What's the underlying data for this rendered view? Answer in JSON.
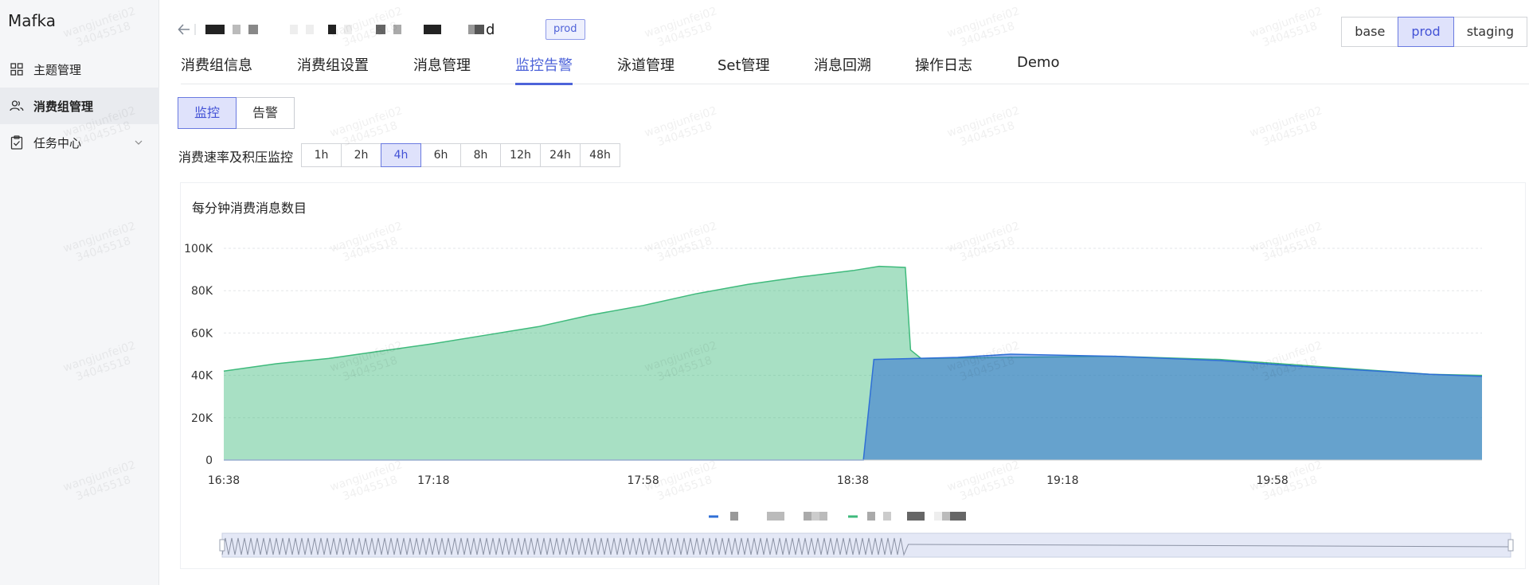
{
  "app": {
    "brand": "Mafka"
  },
  "sidebar": {
    "items": [
      {
        "label": "主题管理",
        "icon": "grid-icon"
      },
      {
        "label": "消费组管理",
        "icon": "users-icon"
      },
      {
        "label": "任务中心",
        "icon": "clipboard-icon"
      }
    ]
  },
  "header": {
    "title_suffix": "d",
    "env_tag": "prod",
    "env_options": [
      "base",
      "prod",
      "staging"
    ],
    "env_selected": "prod"
  },
  "tabs": [
    "消费组信息",
    "消费组设置",
    "消息管理",
    "监控告警",
    "泳道管理",
    "Set管理",
    "消息回溯",
    "操作日志",
    "Demo"
  ],
  "active_tab": "监控告警",
  "segment": {
    "options": [
      "监控",
      "告警"
    ],
    "selected": "监控"
  },
  "range": {
    "label": "消费速率及积压监控",
    "options": [
      "1h",
      "2h",
      "4h",
      "6h",
      "8h",
      "12h",
      "24h",
      "48h"
    ],
    "selected": "4h"
  },
  "watermark": {
    "line1": "wangjunfei02",
    "line2": "34045518"
  },
  "colors": {
    "accent": "#4d63d9",
    "series_green": "#3fba7c",
    "series_blue": "#2f6fd6"
  },
  "chart_data": {
    "type": "area",
    "title": "每分钟消费消息数目",
    "x_ticks": [
      "16:38",
      "17:18",
      "17:58",
      "18:38",
      "19:18",
      "19:58"
    ],
    "x_range_minutes": [
      0,
      240
    ],
    "y_ticks": [
      "100K",
      "80K",
      "60K",
      "40K",
      "20K",
      "0"
    ],
    "ylim": [
      0,
      100000
    ],
    "series": [
      {
        "color": "#3fba7c",
        "points": [
          [
            0,
            42000
          ],
          [
            10,
            45500
          ],
          [
            20,
            48000
          ],
          [
            30,
            51500
          ],
          [
            40,
            55000
          ],
          [
            50,
            59000
          ],
          [
            60,
            63000
          ],
          [
            70,
            68500
          ],
          [
            80,
            73000
          ],
          [
            90,
            78500
          ],
          [
            100,
            83000
          ],
          [
            110,
            86500
          ],
          [
            120,
            89500
          ],
          [
            125,
            91500
          ],
          [
            130,
            91000
          ],
          [
            131,
            52000
          ],
          [
            133,
            48000
          ],
          [
            150,
            48500
          ],
          [
            170,
            49000
          ],
          [
            190,
            47500
          ],
          [
            210,
            44000
          ],
          [
            230,
            40500
          ],
          [
            240,
            40000
          ]
        ]
      },
      {
        "color": "#2f6fd6",
        "points": [
          [
            0,
            0
          ],
          [
            122,
            0
          ],
          [
            124,
            47500
          ],
          [
            140,
            48500
          ],
          [
            150,
            50000
          ],
          [
            170,
            49000
          ],
          [
            190,
            47000
          ],
          [
            210,
            43500
          ],
          [
            230,
            40500
          ],
          [
            240,
            39500
          ]
        ]
      }
    ],
    "grid": true,
    "legend": "bottom",
    "data_zoom": true
  }
}
